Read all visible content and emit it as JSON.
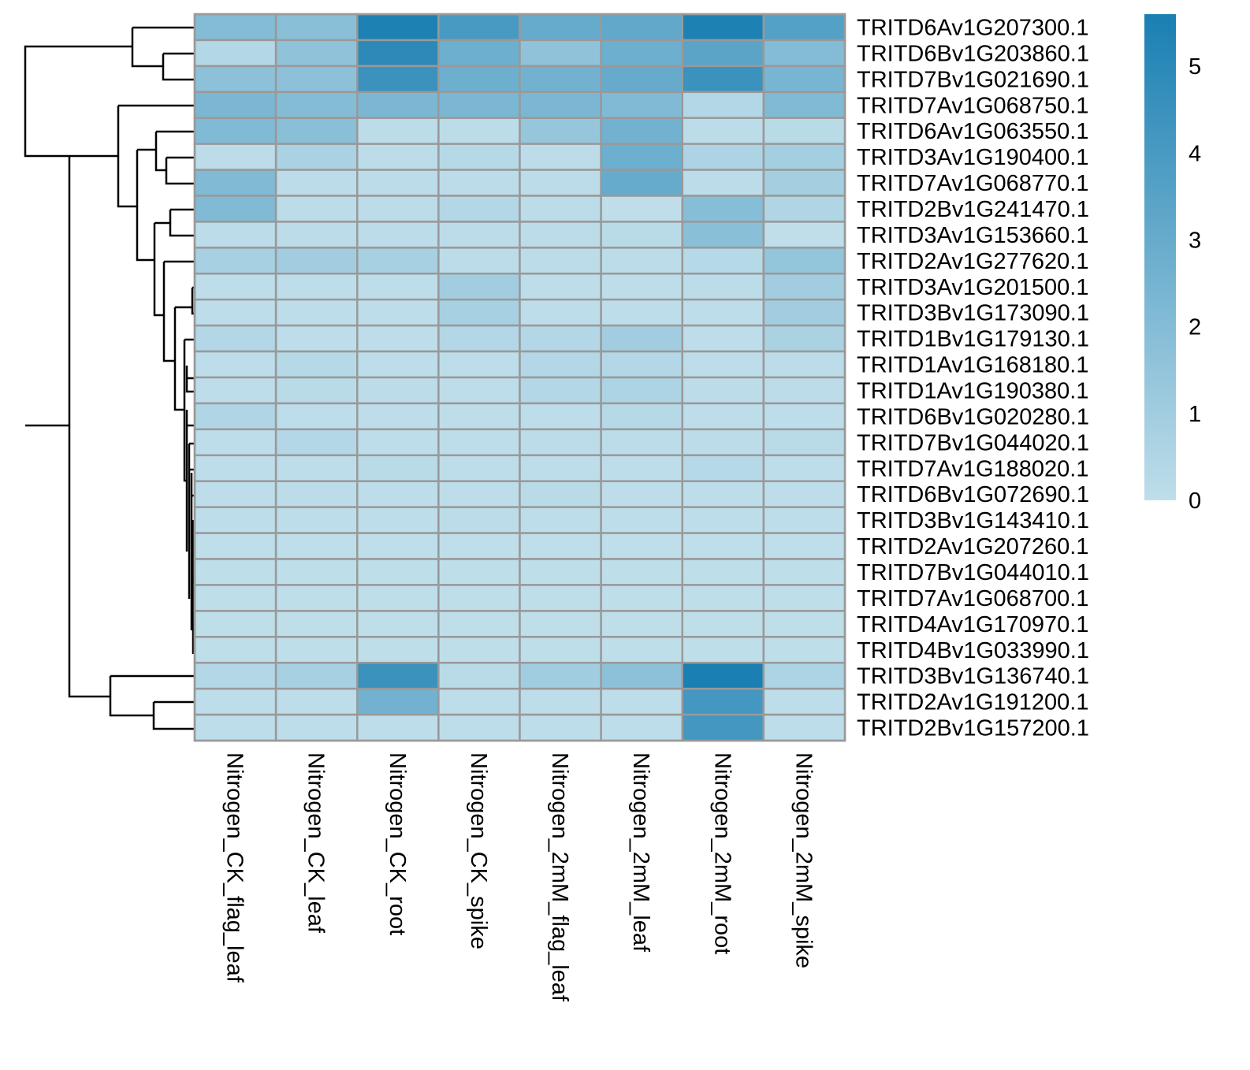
{
  "chart_data": {
    "type": "heatmap",
    "title": "",
    "columns": [
      "Nitrogen_CK_flag_leaf",
      "Nitrogen_CK_leaf",
      "Nitrogen_CK_root",
      "Nitrogen_CK_spike",
      "Nitrogen_2mM_flag_leaf",
      "Nitrogen_2mM_leaf",
      "Nitrogen_2mM_root",
      "Nitrogen_2mM_spike"
    ],
    "rows": [
      "TRITD6Av1G207300.1",
      "TRITD6Bv1G203860.1",
      "TRITD7Bv1G021690.1",
      "TRITD7Av1G068750.1",
      "TRITD6Av1G063550.1",
      "TRITD3Av1G190400.1",
      "TRITD7Av1G068770.1",
      "TRITD2Bv1G241470.1",
      "TRITD3Av1G153660.1",
      "TRITD2Av1G277620.1",
      "TRITD3Av1G201500.1",
      "TRITD3Bv1G173090.1",
      "TRITD1Bv1G179130.1",
      "TRITD1Av1G168180.1",
      "TRITD1Av1G190380.1",
      "TRITD6Bv1G020280.1",
      "TRITD7Bv1G044020.1",
      "TRITD7Av1G188020.1",
      "TRITD6Bv1G072690.1",
      "TRITD3Bv1G143410.1",
      "TRITD2Av1G207260.1",
      "TRITD7Bv1G044010.1",
      "TRITD7Av1G068700.1",
      "TRITD4Av1G170970.1",
      "TRITD4Bv1G033990.1",
      "TRITD3Bv1G136740.1",
      "TRITD2Av1G191200.1",
      "TRITD2Bv1G157200.1"
    ],
    "values": [
      [
        2.0,
        1.8,
        5.5,
        4.0,
        3.0,
        3.2,
        5.5,
        3.6
      ],
      [
        0.4,
        1.6,
        5.0,
        2.8,
        1.6,
        2.8,
        3.4,
        2.0
      ],
      [
        1.7,
        1.7,
        4.5,
        2.8,
        2.6,
        3.0,
        4.5,
        2.4
      ],
      [
        2.3,
        2.0,
        2.3,
        2.3,
        2.3,
        2.1,
        0.4,
        2.1
      ],
      [
        2.1,
        1.8,
        0.1,
        0.1,
        1.4,
        2.6,
        0.1,
        0.2
      ],
      [
        0.1,
        0.7,
        0.1,
        0.3,
        0.1,
        2.8,
        0.6,
        0.9
      ],
      [
        2.1,
        0.1,
        0.1,
        0.1,
        0.1,
        3.0,
        0.1,
        0.9
      ],
      [
        2.1,
        0.1,
        0.1,
        0.4,
        0.1,
        0.0,
        1.9,
        0.5
      ],
      [
        0.1,
        0.1,
        0.1,
        0.1,
        0.1,
        0.2,
        1.8,
        0.0
      ],
      [
        0.8,
        1.0,
        0.8,
        0.1,
        0.1,
        0.1,
        0.3,
        1.5
      ],
      [
        0.05,
        0.05,
        0.05,
        1.0,
        0.05,
        0.05,
        0.1,
        1.0
      ],
      [
        0.05,
        0.05,
        0.05,
        0.8,
        0.05,
        0.05,
        0.05,
        1.0
      ],
      [
        0.4,
        0.05,
        0.05,
        0.4,
        0.4,
        1.0,
        0.05,
        0.7
      ],
      [
        0.05,
        0.3,
        0.05,
        0.05,
        0.4,
        0.4,
        0.05,
        0.1
      ],
      [
        0.05,
        0.2,
        0.1,
        0.05,
        0.4,
        0.6,
        0.1,
        0.1
      ],
      [
        0.5,
        0.05,
        0.05,
        0.05,
        0.05,
        0.3,
        0.05,
        0.05
      ],
      [
        0.05,
        0.4,
        0.05,
        0.05,
        0.1,
        0.1,
        0.1,
        0.2
      ],
      [
        0.05,
        0.05,
        0.2,
        0.05,
        0.05,
        0.05,
        0.3,
        0.05
      ],
      [
        0.05,
        0.1,
        0.05,
        0.05,
        0.2,
        0.05,
        0.05,
        0.05
      ],
      [
        0.05,
        0.05,
        0.05,
        0.1,
        0.05,
        0.05,
        0.05,
        0.05
      ],
      [
        0.02,
        0.02,
        0.02,
        0.02,
        0.02,
        0.02,
        0.02,
        0.02
      ],
      [
        0.02,
        0.02,
        0.02,
        0.02,
        0.02,
        0.02,
        0.02,
        0.02
      ],
      [
        0.02,
        0.02,
        0.02,
        0.02,
        0.02,
        0.02,
        0.02,
        0.02
      ],
      [
        0.02,
        0.02,
        0.02,
        0.02,
        0.02,
        0.02,
        0.02,
        0.02
      ],
      [
        0.02,
        0.02,
        0.02,
        0.02,
        0.02,
        0.02,
        0.02,
        0.02
      ],
      [
        0.4,
        0.8,
        4.5,
        0.2,
        1.0,
        1.7,
        5.6,
        0.6
      ],
      [
        0.05,
        0.05,
        2.6,
        0.05,
        0.05,
        0.05,
        4.2,
        0.05
      ],
      [
        0.05,
        0.05,
        0.05,
        0.05,
        0.05,
        0.05,
        4.2,
        0.05
      ]
    ],
    "color_scale": {
      "min": 0,
      "max": 5.6,
      "low_color": "#bfdeea",
      "high_color": "#1a7fb2"
    },
    "legend": {
      "position": "right",
      "ticks": [
        "0",
        "1",
        "2",
        "3",
        "4",
        "5"
      ]
    },
    "row_dendrogram": true,
    "cell_border_color": "#999999"
  }
}
